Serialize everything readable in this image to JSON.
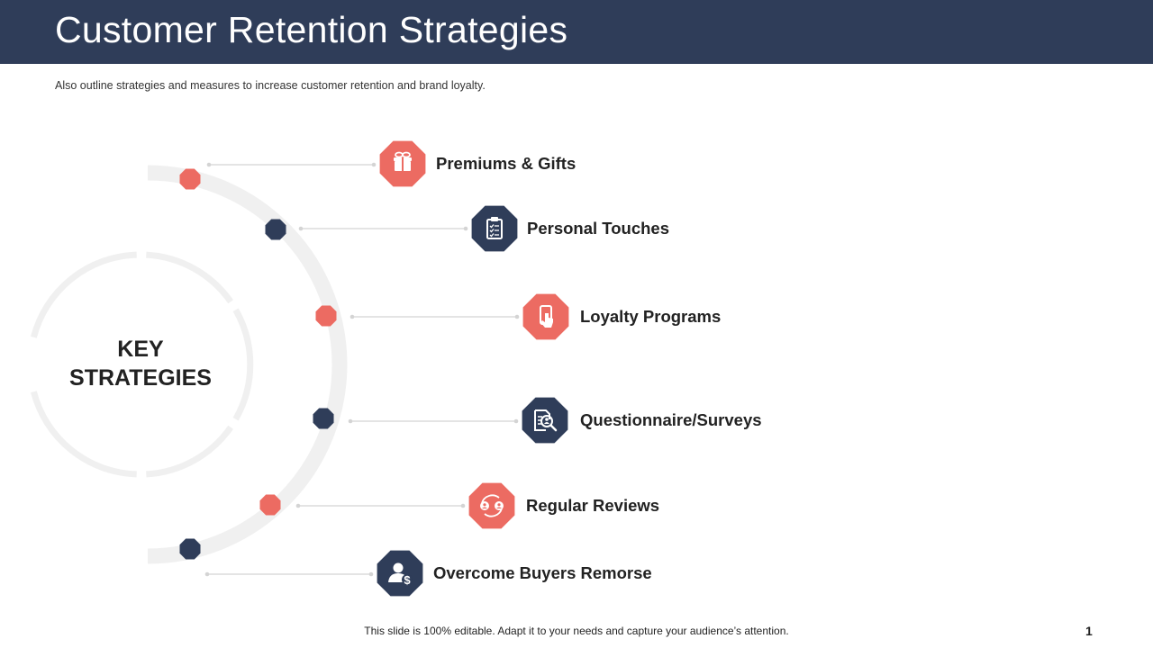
{
  "header": {
    "title": "Customer Retention Strategies",
    "subtitle": "Also outline strategies and measures to increase customer retention and brand loyalty."
  },
  "center": {
    "line1": "KEY",
    "line2": "STRATEGIES"
  },
  "colors": {
    "header_bg": "#2f3d59",
    "coral": "#ec6b62",
    "navy": "#2f3d59",
    "ring": "#f0f0f0",
    "connector": "#d4d4d4"
  },
  "items": [
    {
      "label": "Premiums & Gifts",
      "color": "coral",
      "icon": "gift-icon"
    },
    {
      "label": "Personal Touches",
      "color": "navy",
      "icon": "clipboard-checklist-icon"
    },
    {
      "label": "Loyalty Programs",
      "color": "coral",
      "icon": "mobile-tap-icon"
    },
    {
      "label": "Questionnaire/Surveys",
      "color": "navy",
      "icon": "document-search-icon"
    },
    {
      "label": "Regular Reviews",
      "color": "coral",
      "icon": "people-exchange-icon"
    },
    {
      "label": "Overcome Buyers Remorse",
      "color": "navy",
      "icon": "user-dollar-icon"
    }
  ],
  "footer": {
    "note": "This slide is 100% editable. Adapt it to your needs and capture your audience’s attention.",
    "page_number": "1"
  }
}
